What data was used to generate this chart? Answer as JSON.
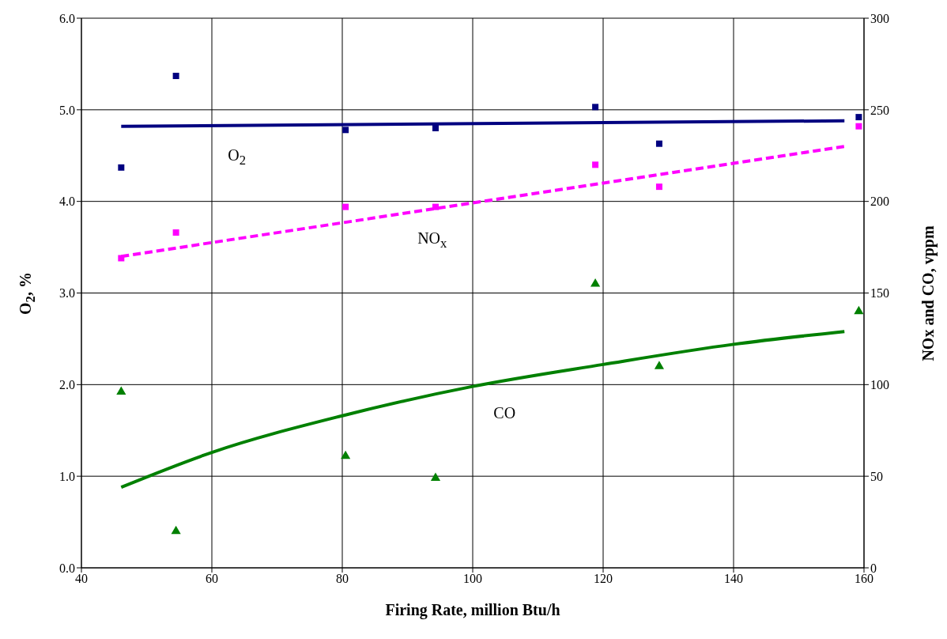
{
  "chart_data": {
    "type": "scatter",
    "xlabel": "Firing Rate, million Btu/h",
    "ylabel": "O$_{2}$, %",
    "y2label": "NOx and CO, vppm",
    "xlim": [
      40,
      160
    ],
    "xticks": [
      40,
      60,
      80,
      100,
      120,
      140,
      160
    ],
    "ylim": [
      0,
      6
    ],
    "yticks": [
      {
        "value": 0,
        "label": "0.0"
      },
      {
        "value": 1,
        "label": "1.0"
      },
      {
        "value": 2,
        "label": "2.0"
      },
      {
        "value": 3,
        "label": "3.0"
      },
      {
        "value": 4,
        "label": "4.0"
      },
      {
        "value": 5,
        "label": "5.0"
      },
      {
        "value": 6,
        "label": "6.0"
      }
    ],
    "y2lim": [
      0,
      300
    ],
    "y2ticks": [
      0,
      50,
      100,
      150,
      200,
      250,
      300
    ],
    "grid": true,
    "series": [
      {
        "marker": "square",
        "color": "#000080",
        "x": [
          46.1,
          54.5,
          80.5,
          94.3,
          118.8,
          128.6,
          159.2
        ],
        "values": [
          4.37,
          5.37,
          4.78,
          4.8,
          5.03,
          4.63,
          4.92
        ]
      },
      {
        "marker": "square",
        "axis": "y2",
        "color": "#ff00ff",
        "x": [
          46.1,
          54.5,
          80.5,
          94.3,
          118.8,
          128.6,
          159.2
        ],
        "values": [
          169,
          183,
          197,
          197,
          220,
          208,
          241
        ]
      },
      {
        "marker": "triangle",
        "axis": "y2",
        "color": "#008000",
        "x": [
          46.1,
          54.5,
          80.5,
          94.3,
          118.8,
          128.6,
          159.2
        ],
        "values": [
          96,
          20,
          61,
          49,
          155,
          110,
          140
        ]
      },
      {
        "type": "line",
        "name": "O$_{2}$",
        "line_style": "solid",
        "color": "#000080",
        "x": [
          46.1,
          157
        ],
        "values": [
          4.82,
          4.88
        ]
      },
      {
        "type": "line",
        "name": "NO$_{x}$",
        "line_style": "dashed",
        "axis": "y2",
        "color": "#ff00ff",
        "x": [
          46.1,
          157
        ],
        "values": [
          170,
          230
        ]
      },
      {
        "type": "line",
        "name": "CO",
        "line_style": "solid",
        "axis": "y2",
        "color": "#008000",
        "x": [
          46.1,
          60,
          80,
          100,
          120,
          140,
          157
        ],
        "values": [
          44,
          63,
          83,
          99,
          111,
          122,
          129
        ]
      }
    ]
  }
}
